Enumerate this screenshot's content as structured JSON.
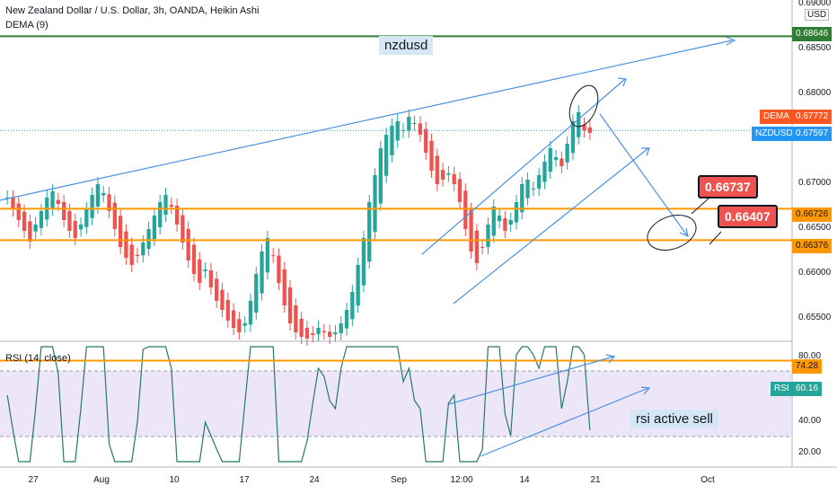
{
  "header": {
    "title": "New Zealand Dollar / U.S. Dollar, 3h, OANDA, Heikin Ashi",
    "indicator": "DEMA (9)",
    "currency": "USD"
  },
  "price_axis": {
    "ticks": [
      "0.69000",
      "0.68500",
      "0.68000",
      "0.67500",
      "0.67000",
      "0.66500",
      "0.66000",
      "0.65500"
    ],
    "range": [
      0.6525,
      0.6905
    ]
  },
  "rsi_panel": {
    "title": "RSI (14, close)",
    "ticks": [
      "80.00",
      "40.00",
      "20.00"
    ],
    "range": [
      15,
      85
    ],
    "bands": {
      "upper": 70,
      "lower": 30
    },
    "tag_label": "RSI",
    "tag_value": "60.16"
  },
  "time_axis": [
    "27",
    "Aug",
    "10",
    "17",
    "24",
    "Sep",
    "12:00",
    "14",
    "21",
    "Oct"
  ],
  "levels": [
    {
      "value": 0.68646,
      "label": "0.68646",
      "color": "#2e7d32"
    },
    {
      "value": 0.66726,
      "label": "0.66726",
      "color": "#ff9800"
    },
    {
      "value": 0.66376,
      "label": "0.66376",
      "color": "#ff9800"
    }
  ],
  "price_tags": {
    "dema": {
      "name": "DEMA",
      "value": "0.67772",
      "color": "#ff5722"
    },
    "symbol": {
      "name": "NZDUSD",
      "value": "0.67597",
      "color": "#2196f3"
    }
  },
  "rsi_level": {
    "value": 74.28,
    "label": "74.28",
    "color": "#ff9800"
  },
  "annotations": {
    "top_note": "nzdusd",
    "rsi_note": "rsi active sell",
    "callouts": [
      "0.66737",
      "0.66407"
    ]
  },
  "chart_data": {
    "type": "candlestick",
    "style": "Heikin Ashi",
    "y_range": [
      0.6525,
      0.6905
    ],
    "closes": [
      0.6685,
      0.6672,
      0.666,
      0.6648,
      0.6636,
      0.6655,
      0.667,
      0.6685,
      0.6692,
      0.6678,
      0.666,
      0.6648,
      0.664,
      0.6655,
      0.6672,
      0.6688,
      0.67,
      0.669,
      0.667,
      0.665,
      0.663,
      0.6618,
      0.661,
      0.662,
      0.6635,
      0.665,
      0.6665,
      0.668,
      0.6688,
      0.6675,
      0.6655,
      0.6635,
      0.6615,
      0.66,
      0.659,
      0.6605,
      0.6585,
      0.657,
      0.656,
      0.6548,
      0.654,
      0.6535,
      0.6545,
      0.657,
      0.66,
      0.6625,
      0.664,
      0.662,
      0.659,
      0.6565,
      0.6545,
      0.6535,
      0.653,
      0.6528,
      0.6532,
      0.654,
      0.6535,
      0.653,
      0.6535,
      0.6545,
      0.656,
      0.658,
      0.661,
      0.664,
      0.668,
      0.671,
      0.674,
      0.6755,
      0.6765,
      0.677,
      0.676,
      0.6775,
      0.6768,
      0.6755,
      0.6735,
      0.6715,
      0.67,
      0.6705,
      0.6712,
      0.67,
      0.668,
      0.665,
      0.6625,
      0.6612,
      0.663,
      0.6655,
      0.6675,
      0.6665,
      0.6648,
      0.666,
      0.668,
      0.67,
      0.6705,
      0.6695,
      0.671,
      0.6725,
      0.674,
      0.673,
      0.672,
      0.6745,
      0.677,
      0.678,
      0.676,
      0.6757
    ]
  }
}
